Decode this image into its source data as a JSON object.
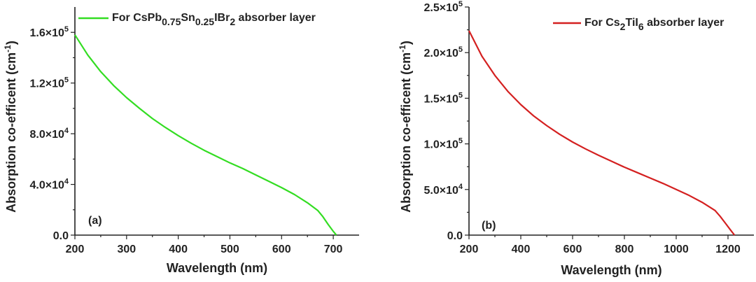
{
  "chart_data": [
    {
      "type": "line",
      "panel_label": "(a)",
      "xlabel": "Wavelength (nm)",
      "ylabel": "Absorption co-efficent (cm",
      "ylabel_sup": "-1",
      "ylabel_close": ")",
      "xlim": [
        200,
        750
      ],
      "ylim": [
        0,
        180000
      ],
      "x_ticks": [
        200,
        300,
        400,
        500,
        600,
        700
      ],
      "x_tick_labels": [
        "200",
        "300",
        "400",
        "500",
        "600",
        "700"
      ],
      "y_ticks": [
        0,
        40000,
        80000,
        120000,
        160000
      ],
      "y_tick_labels": [
        {
          "mantissa": "0.0",
          "exp": ""
        },
        {
          "mantissa": "4.0×10",
          "exp": "4"
        },
        {
          "mantissa": "8.0×10",
          "exp": "4"
        },
        {
          "mantissa": "1.2×10",
          "exp": "5"
        },
        {
          "mantissa": "1.6×10",
          "exp": "5"
        }
      ],
      "legend_position": "top-right",
      "series": [
        {
          "name": "For CsPb0.75Sn0.25IBr2 absorber layer",
          "legend_parts": [
            {
              "t": "For CsPb",
              "sub": false
            },
            {
              "t": "0.75",
              "sub": true
            },
            {
              "t": "Sn",
              "sub": false
            },
            {
              "t": "0.25",
              "sub": true
            },
            {
              "t": "IBr",
              "sub": false
            },
            {
              "t": "2",
              "sub": true
            },
            {
              "t": " absorber layer",
              "sub": false
            }
          ],
          "color": "#33dd22",
          "x": [
            200,
            225,
            250,
            275,
            300,
            325,
            350,
            375,
            400,
            425,
            450,
            475,
            500,
            525,
            550,
            575,
            600,
            625,
            650,
            670,
            680,
            690,
            700,
            706
          ],
          "y": [
            158000,
            142000,
            129000,
            118000,
            108500,
            100000,
            92000,
            85000,
            78500,
            72500,
            67000,
            62000,
            57000,
            52500,
            47500,
            42500,
            37500,
            32000,
            25500,
            19500,
            14500,
            8500,
            3000,
            0
          ]
        }
      ]
    },
    {
      "type": "line",
      "panel_label": "(b)",
      "xlabel": "Wavelength (nm)",
      "ylabel": "Absorption co-efficent (cm",
      "ylabel_sup": "-1",
      "ylabel_close": ")",
      "xlim": [
        200,
        1300
      ],
      "ylim": [
        0,
        250000
      ],
      "x_ticks": [
        200,
        400,
        600,
        800,
        1000,
        1200
      ],
      "x_tick_labels": [
        "200",
        "400",
        "600",
        "800",
        "1000",
        "1200"
      ],
      "y_ticks": [
        0,
        50000,
        100000,
        150000,
        200000,
        250000
      ],
      "y_tick_labels": [
        {
          "mantissa": "0.0",
          "exp": ""
        },
        {
          "mantissa": "5.0×10",
          "exp": "4"
        },
        {
          "mantissa": "1.0×10",
          "exp": "5"
        },
        {
          "mantissa": "1.5×10",
          "exp": "5"
        },
        {
          "mantissa": "2.0×10",
          "exp": "5"
        },
        {
          "mantissa": "2.5×10",
          "exp": "5"
        }
      ],
      "legend_position": "top-right",
      "series": [
        {
          "name": "For Cs2TiI6 absorber layer",
          "legend_parts": [
            {
              "t": "For Cs",
              "sub": false
            },
            {
              "t": "2",
              "sub": true
            },
            {
              "t": "TiI",
              "sub": false
            },
            {
              "t": "6",
              "sub": true
            },
            {
              "t": " absorber layer",
              "sub": false
            }
          ],
          "color": "#d42020",
          "x": [
            200,
            250,
            300,
            350,
            400,
            450,
            500,
            550,
            600,
            650,
            700,
            750,
            800,
            850,
            900,
            950,
            1000,
            1050,
            1100,
            1150,
            1170,
            1190,
            1210,
            1225
          ],
          "y": [
            224000,
            196000,
            175000,
            157500,
            143000,
            130500,
            120000,
            110500,
            102000,
            94500,
            87500,
            81000,
            74500,
            68500,
            62500,
            56500,
            50000,
            43500,
            36000,
            27000,
            20500,
            13000,
            5500,
            0
          ]
        }
      ]
    }
  ]
}
